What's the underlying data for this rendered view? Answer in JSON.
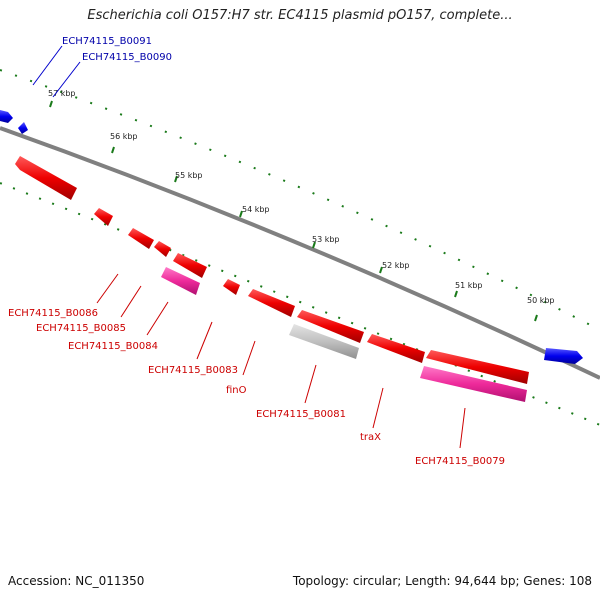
{
  "title": "Escherichia coli O157:H7 str. EC4115 plasmid pO157, complete...",
  "footer": {
    "accession": "Accession: NC_011350",
    "topology": "Topology: circular; Length: 94,644 bp; Genes: 108"
  },
  "ticks": [
    "57 kbp",
    "56 kbp",
    "55 kbp",
    "54 kbp",
    "53 kbp",
    "52 kbp",
    "51 kbp",
    "50 kbp"
  ],
  "labels": [
    {
      "text": "ECH74115_B0091",
      "color": "blue"
    },
    {
      "text": "ECH74115_B0090",
      "color": "blue"
    },
    {
      "text": "ECH74115_B0086",
      "color": "red"
    },
    {
      "text": "ECH74115_B0085",
      "color": "red"
    },
    {
      "text": "ECH74115_B0084",
      "color": "red"
    },
    {
      "text": "ECH74115_B0083",
      "color": "red"
    },
    {
      "text": "finO",
      "color": "red"
    },
    {
      "text": "ECH74115_B0081",
      "color": "red"
    },
    {
      "text": "traX",
      "color": "red"
    },
    {
      "text": "ECH74115_B0079",
      "color": "red"
    }
  ],
  "colors": {
    "backbone": "#808080",
    "gc_dots": "#1a7a1a",
    "gene_forward": "#0000ee",
    "gene_reverse": "#ee0000",
    "gene_pink": "#ee2a9a",
    "gene_grey": "#c0c0c0"
  }
}
